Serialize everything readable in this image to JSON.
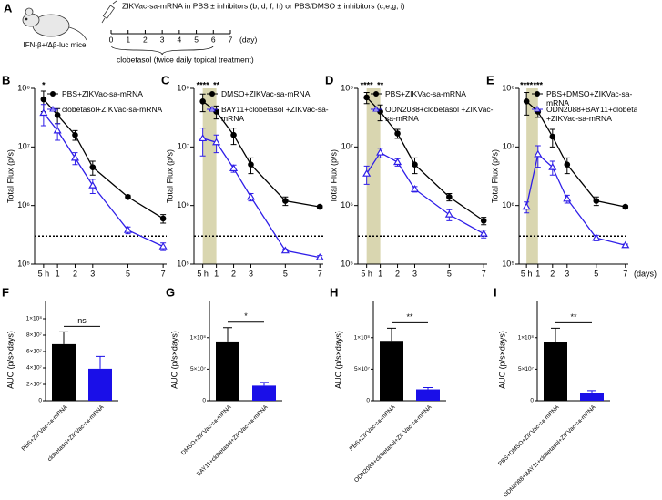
{
  "panel_a": {
    "panel": "A",
    "protocol": "ZIKVac-sa-mRNA in PBS ± inhibitors (b, d, f, h) or PBS/DMSO ± inhibitors (c,e,g, i)",
    "mouse_label": "IFN-β+/Δβ-luc mice",
    "timeline_ticks": [
      0,
      1,
      2,
      3,
      4,
      5,
      6,
      7
    ],
    "timeline_unit": "(day)",
    "treatment": "clobetasol (twice daily topical treatment)"
  },
  "chart_data": [
    {
      "type": "line",
      "panel": "B",
      "y_label": "Total Flux (p/s)",
      "y_scale": "log",
      "x": [
        0.21,
        1,
        2,
        3,
        5,
        7
      ],
      "xlim": [
        -0.3,
        7.2
      ],
      "xticks": [
        {
          "value": 0.21,
          "label": "5 h"
        },
        1,
        2,
        3,
        5,
        7
      ],
      "ylim": [
        100000,
        100000000
      ],
      "yticks": [
        {
          "value": 100000,
          "label": "10⁵"
        },
        {
          "value": 1000000,
          "label": "10⁶"
        },
        {
          "value": 10000000,
          "label": "10⁷"
        },
        {
          "value": 100000000,
          "label": "10⁸"
        }
      ],
      "threshold": 300000,
      "annotations": [
        {
          "x": 0.21,
          "text": "*"
        }
      ],
      "series": [
        {
          "name": "PBS+ZIKVac-sa-mRNA",
          "color": "#000000",
          "marker": "circle",
          "values": [
            65000000,
            35000000,
            16000000,
            4500000,
            1400000,
            600000
          ],
          "errors": [
            25000000,
            10000000,
            3000000,
            1200000,
            100000,
            100000
          ]
        },
        {
          "name": "clobetasol+ZIKVac-sa-mRNA",
          "color": "#2f1ee8",
          "marker": "triangle",
          "values": [
            38000000,
            19000000,
            6500000,
            2200000,
            380000,
            200000
          ],
          "errors": [
            15000000,
            6000000,
            1500000,
            600000,
            50000,
            30000
          ]
        }
      ]
    },
    {
      "type": "line",
      "panel": "C",
      "y_label": "Total Flux (p/s)",
      "y_scale": "log",
      "x": [
        0.21,
        1,
        2,
        3,
        5,
        7
      ],
      "xlim": [
        -0.3,
        7.2
      ],
      "xticks": [
        {
          "value": 0.21,
          "label": "5 h"
        },
        1,
        2,
        3,
        5,
        7
      ],
      "ylim": [
        100000,
        100000000
      ],
      "yticks": [
        {
          "value": 100000,
          "label": "10⁵"
        },
        {
          "value": 1000000,
          "label": "10⁶"
        },
        {
          "value": 10000000,
          "label": "10⁷"
        },
        {
          "value": 100000000,
          "label": "10⁸"
        }
      ],
      "threshold": 300000,
      "shaded_range": [
        0.21,
        1
      ],
      "annotations": [
        {
          "x": 0.21,
          "text": "****"
        },
        {
          "x": 1,
          "text": "**"
        }
      ],
      "series": [
        {
          "name": "DMSO+ZIKVac-sa-mRNA",
          "color": "#000000",
          "marker": "circle",
          "values": [
            60000000,
            40000000,
            16000000,
            5000000,
            1200000,
            950000
          ],
          "errors": [
            20000000,
            10000000,
            5000000,
            1500000,
            200000,
            50000
          ]
        },
        {
          "name": "BAY11+clobetasol +ZIKVac-sa-mRNA",
          "color": "#2f1ee8",
          "marker": "triangle",
          "values": [
            14000000,
            12000000,
            4300000,
            1400000,
            170000,
            130000
          ],
          "errors": [
            7000000,
            4000000,
            600000,
            200000,
            10000,
            10000
          ]
        }
      ]
    },
    {
      "type": "line",
      "panel": "D",
      "y_label": "Total Flux (p/s)",
      "y_scale": "log",
      "x": [
        0.21,
        1,
        2,
        3,
        5,
        7
      ],
      "xlim": [
        -0.3,
        7.2
      ],
      "xticks": [
        {
          "value": 0.21,
          "label": "5 h"
        },
        1,
        2,
        3,
        5,
        7
      ],
      "ylim": [
        100000,
        100000000
      ],
      "yticks": [
        {
          "value": 100000,
          "label": "10⁵"
        },
        {
          "value": 1000000,
          "label": "10⁶"
        },
        {
          "value": 10000000,
          "label": "10⁷"
        },
        {
          "value": 100000000,
          "label": "10⁸"
        }
      ],
      "threshold": 300000,
      "shaded_range": [
        0.21,
        1
      ],
      "annotations": [
        {
          "x": 0.21,
          "text": "****"
        },
        {
          "x": 1,
          "text": "**"
        }
      ],
      "series": [
        {
          "name": "PBS+ZIKVac-sa-mRNA",
          "color": "#000000",
          "marker": "circle",
          "values": [
            70000000,
            40000000,
            17000000,
            5000000,
            1400000,
            550000
          ],
          "errors": [
            15000000,
            12000000,
            3000000,
            1500000,
            200000,
            80000
          ]
        },
        {
          "name": "ODN2088+clobetasol +ZIKVac-sa-mRNA",
          "color": "#2f1ee8",
          "marker": "triangle",
          "values": [
            3500000,
            8000000,
            5500000,
            1900000,
            700000,
            330000
          ],
          "errors": [
            1200000,
            1500000,
            800000,
            200000,
            150000,
            50000
          ]
        }
      ]
    },
    {
      "type": "line",
      "panel": "E",
      "y_label": "Total Flux (p/s)",
      "x_label": "(days)",
      "y_scale": "log",
      "x": [
        0.21,
        1,
        2,
        3,
        5,
        7
      ],
      "xlim": [
        -0.3,
        7.2
      ],
      "xticks": [
        {
          "value": 0.21,
          "label": "5 h"
        },
        1,
        2,
        3,
        5,
        7
      ],
      "ylim": [
        100000,
        100000000
      ],
      "yticks": [
        {
          "value": 100000,
          "label": "10⁵"
        },
        {
          "value": 1000000,
          "label": "10⁶"
        },
        {
          "value": 10000000,
          "label": "10⁷"
        },
        {
          "value": 100000000,
          "label": "10⁸"
        }
      ],
      "threshold": 300000,
      "shaded_range": [
        0.21,
        1
      ],
      "annotations": [
        {
          "x": 0.21,
          "text": "****"
        },
        {
          "x": 1,
          "text": "***"
        }
      ],
      "series": [
        {
          "name": "PBS+DMSO+ZIKVac-sa-mRNA",
          "color": "#000000",
          "marker": "circle",
          "values": [
            60000000,
            40000000,
            15000000,
            5000000,
            1200000,
            950000
          ],
          "errors": [
            25000000,
            8000000,
            5000000,
            1500000,
            200000,
            50000
          ]
        },
        {
          "name": "ODN2088+BAY11+clobetasol +ZIKVac-sa-mRNA",
          "color": "#2f1ee8",
          "marker": "triangle",
          "values": [
            950000,
            7500000,
            4500000,
            1300000,
            280000,
            210000
          ],
          "errors": [
            200000,
            3000000,
            1200000,
            200000,
            30000,
            10000
          ]
        }
      ]
    },
    {
      "type": "bar",
      "panel": "F",
      "y_label": "AUC (p/s×days)",
      "categories": [
        "PBS+ZIKVac-sa-mRNA",
        "clobetasol+ZIKVac-sa-mRNA"
      ],
      "values": [
        69000000,
        39000000
      ],
      "errors": [
        15000000,
        15000000
      ],
      "colors": [
        "#000000",
        "#1a0fe8"
      ],
      "ylim": [
        0,
        100000000
      ],
      "yticks": [
        0,
        {
          "value": 20000000,
          "label": "2×10⁷"
        },
        {
          "value": 40000000,
          "label": "4×10⁷"
        },
        {
          "value": 60000000,
          "label": "6×10⁷"
        },
        {
          "value": 80000000,
          "label": "8×10⁷"
        },
        {
          "value": 100000000,
          "label": "1×10⁸"
        }
      ],
      "significance": "ns"
    },
    {
      "type": "bar",
      "panel": "G",
      "y_label": "AUC (p/s×days)",
      "categories": [
        "DMSO+ZIKVac-sa-mRNA",
        "BAY11+clobetasol+ZIKVac-sa-mRNA"
      ],
      "values": [
        94000000,
        24000000
      ],
      "errors": [
        22000000,
        5000000
      ],
      "colors": [
        "#000000",
        "#1a0fe8"
      ],
      "ylim": [
        0,
        130000000
      ],
      "yticks": [
        0,
        {
          "value": 50000000,
          "label": "5×10⁷"
        },
        {
          "value": 100000000,
          "label": "1×10⁸"
        }
      ],
      "significance": "*"
    },
    {
      "type": "bar",
      "panel": "H",
      "y_label": "AUC (p/s×days)",
      "categories": [
        "PBS+ZIKVac-sa-mRNA",
        "ODN2088+clobetasol+ZIKVac-sa-mRNA"
      ],
      "values": [
        95000000,
        18000000
      ],
      "errors": [
        20000000,
        3000000
      ],
      "colors": [
        "#000000",
        "#1a0fe8"
      ],
      "ylim": [
        0,
        130000000
      ],
      "yticks": [
        0,
        {
          "value": 50000000,
          "label": "5×10⁷"
        },
        {
          "value": 100000000,
          "label": "1×10⁸"
        }
      ],
      "significance": "**"
    },
    {
      "type": "bar",
      "panel": "I",
      "y_label": "AUC (p/s×days)",
      "categories": [
        "PBS+DMSO+ZIKVac-sa-mRNA",
        "ODN2088+BAY11+clobetasol+ZIKVac-sa-mRNA"
      ],
      "values": [
        93000000,
        13000000
      ],
      "errors": [
        22000000,
        3000000
      ],
      "colors": [
        "#000000",
        "#1a0fe8"
      ],
      "ylim": [
        0,
        130000000
      ],
      "yticks": [
        0,
        {
          "value": 50000000,
          "label": "5×10⁷"
        },
        {
          "value": 100000000,
          "label": "1×10⁸"
        }
      ],
      "significance": "**"
    }
  ]
}
